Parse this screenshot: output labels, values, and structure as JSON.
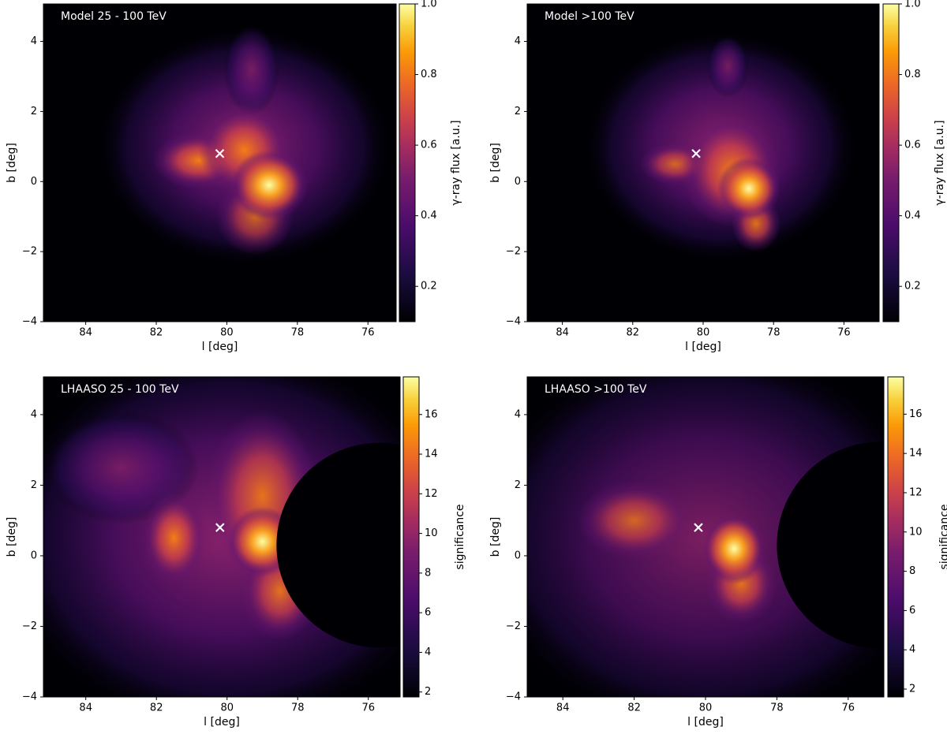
{
  "chart_data": [
    {
      "type": "heatmap",
      "title": "Model 25 - 100 TeV",
      "xlabel": "l [deg]",
      "ylabel": "b [deg]",
      "xlim": [
        85.2,
        75.2
      ],
      "ylim": [
        -4,
        5.07
      ],
      "xticks": [
        84,
        82,
        80,
        78,
        76
      ],
      "yticks": [
        {
          "value": -4,
          "label": "−4"
        },
        {
          "value": -2,
          "label": "−2"
        },
        0,
        2,
        4
      ],
      "colormap": "inferno",
      "colorbar": {
        "label": "γ-ray flux [a.u.]",
        "lim": [
          0.1,
          1.0
        ],
        "ticks": [
          0.2,
          0.4,
          0.6,
          0.8,
          {
            "value": 1.0,
            "label": "1.0"
          }
        ]
      },
      "markers": {
        "x": [
          80.2
        ],
        "y": [
          0.8
        ],
        "color": "#ffffff"
      }
    },
    {
      "type": "heatmap",
      "title": "Model >100 TeV",
      "xlabel": "l [deg]",
      "ylabel": "b [deg]",
      "xlim": [
        85,
        75
      ],
      "ylim": [
        -4,
        5.07
      ],
      "xticks": [
        84,
        82,
        80,
        78,
        76
      ],
      "yticks": [
        {
          "value": -4,
          "label": "−4"
        },
        {
          "value": -2,
          "label": "−2"
        },
        0,
        2,
        4
      ],
      "colormap": "inferno",
      "colorbar": {
        "label": "γ-ray flux [a.u.]",
        "lim": [
          0.1,
          1.0
        ],
        "ticks": [
          0.2,
          0.4,
          0.6,
          0.8,
          {
            "value": 1.0,
            "label": "1.0"
          }
        ]
      },
      "markers": {
        "x": [
          80.2
        ],
        "y": [
          0.8
        ],
        "color": "#ffffff"
      }
    },
    {
      "type": "heatmap",
      "title": "LHAASO 25 - 100 TeV",
      "xlabel": "l [deg]",
      "ylabel": "b [deg]",
      "xlim": [
        85.2,
        75.1
      ],
      "ylim": [
        -4,
        5.07
      ],
      "xticks": [
        84,
        82,
        80,
        78,
        76
      ],
      "yticks": [
        {
          "value": -4,
          "label": "−4"
        },
        {
          "value": -2,
          "label": "−2"
        },
        0,
        2,
        4
      ],
      "colormap": "inferno",
      "colorbar": {
        "label": "significance",
        "lim": [
          1.75,
          17.9
        ],
        "ticks": [
          2,
          4,
          6,
          8,
          10,
          12,
          14,
          16
        ]
      },
      "markers": {
        "x": [
          80.2
        ],
        "y": [
          0.8
        ],
        "color": "#ffffff"
      }
    },
    {
      "type": "heatmap",
      "title": "LHAASO >100 TeV",
      "xlabel": "l [deg]",
      "ylabel": "b [deg]",
      "xlim": [
        85,
        75
      ],
      "ylim": [
        -4,
        5.07
      ],
      "xticks": [
        84,
        82,
        80,
        78,
        76
      ],
      "yticks": [
        {
          "value": -4,
          "label": "−4"
        },
        {
          "value": -2,
          "label": "−2"
        },
        0,
        2,
        4
      ],
      "colormap": "inferno",
      "colorbar": {
        "label": "significance",
        "lim": [
          1.6,
          17.9
        ],
        "ticks": [
          2,
          4,
          6,
          8,
          10,
          12,
          14,
          16
        ]
      },
      "markers": {
        "x": [
          80.2
        ],
        "y": [
          0.8
        ],
        "color": "#ffffff"
      }
    }
  ]
}
